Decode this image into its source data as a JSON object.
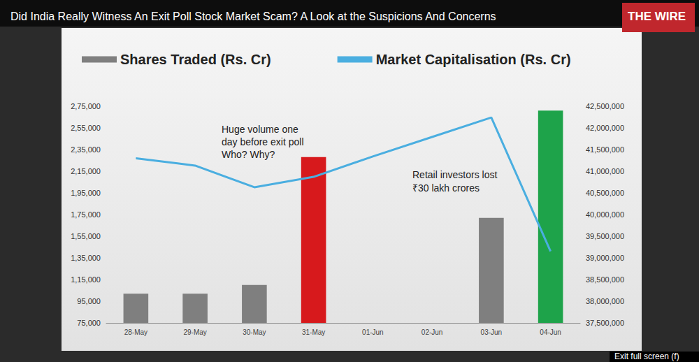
{
  "chart_data": {
    "type": "bar",
    "title": "Did India Really Witness An Exit Poll Stock Market Scam? A Look at the Suspicions And Concerns",
    "categories": [
      "28-May",
      "29-May",
      "30-May",
      "31-May",
      "01-Jun",
      "02-Jun",
      "03-Jun",
      "04-Jun"
    ],
    "series": [
      {
        "name": "Shares Traded (Rs. Cr)",
        "type": "bar",
        "color": "#7f7f7f",
        "colors": [
          "#7f7f7f",
          "#7f7f7f",
          "#7f7f7f",
          "#d7191c",
          "#7f7f7f",
          "#7f7f7f",
          "#7f7f7f",
          "#1ea34a"
        ],
        "values": [
          102000,
          102000,
          110000,
          228000,
          null,
          null,
          172000,
          271000
        ]
      },
      {
        "name": "Market Capitalisation (Rs. Cr)",
        "type": "line",
        "axis": "y2",
        "color": "#4aaee0",
        "values": [
          41300000,
          41130000,
          40630000,
          40870000,
          41340000,
          41790000,
          42240000,
          39150000
        ]
      }
    ],
    "ylim": [
      75000,
      275000
    ],
    "yticks": [
      {
        "value": 75000,
        "label": "75,000"
      },
      {
        "value": 95000,
        "label": "95,000"
      },
      {
        "value": 115000,
        "label": "1,15,000"
      },
      {
        "value": 135000,
        "label": "1,35,000"
      },
      {
        "value": 155000,
        "label": "1,55,000"
      },
      {
        "value": 175000,
        "label": "1,75,000"
      },
      {
        "value": 195000,
        "label": "1,95,000"
      },
      {
        "value": 215000,
        "label": "2,15,000"
      },
      {
        "value": 235000,
        "label": "2,35,000"
      },
      {
        "value": 255000,
        "label": "2,55,000"
      },
      {
        "value": 275000,
        "label": "2,75,000"
      }
    ],
    "y2lim": [
      37500000,
      42500000
    ],
    "y2ticks": [
      {
        "value": 37500000,
        "label": "37,500,000"
      },
      {
        "value": 38000000,
        "label": "38,000,000"
      },
      {
        "value": 38500000,
        "label": "38,500,000"
      },
      {
        "value": 39000000,
        "label": "39,000,000"
      },
      {
        "value": 39500000,
        "label": "39,500,000"
      },
      {
        "value": 40000000,
        "label": "40,000,000"
      },
      {
        "value": 40500000,
        "label": "40,500,000"
      },
      {
        "value": 41000000,
        "label": "41,000,000"
      },
      {
        "value": 41500000,
        "label": "41,500,000"
      },
      {
        "value": 42000000,
        "label": "42,000,000"
      },
      {
        "value": 42500000,
        "label": "42,500,000"
      }
    ],
    "grid": false,
    "legend": "top",
    "annotations": [
      "Huge volume one\nday before exit poll\nWho? Why?",
      "Retail investors lost\n₹30 lakh crores",
      "THE WIRE",
      "Exit full screen (f)"
    ]
  }
}
